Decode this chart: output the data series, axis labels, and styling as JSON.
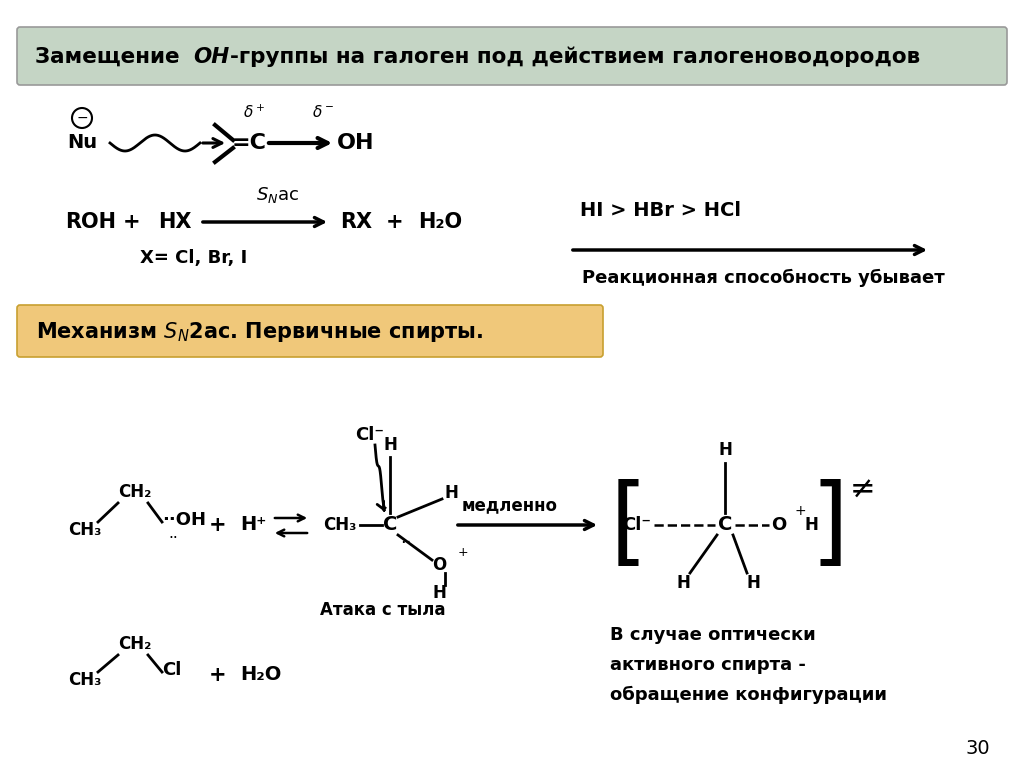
{
  "bg_color": "#ffffff",
  "header_bg": "#c5d5c5",
  "mechanism_bg": "#f0c87a",
  "page_number": "30",
  "fig_w": 10.24,
  "fig_h": 7.67,
  "fig_dpi": 100,
  "xlim": [
    0,
    1024
  ],
  "ylim": [
    0,
    767
  ]
}
